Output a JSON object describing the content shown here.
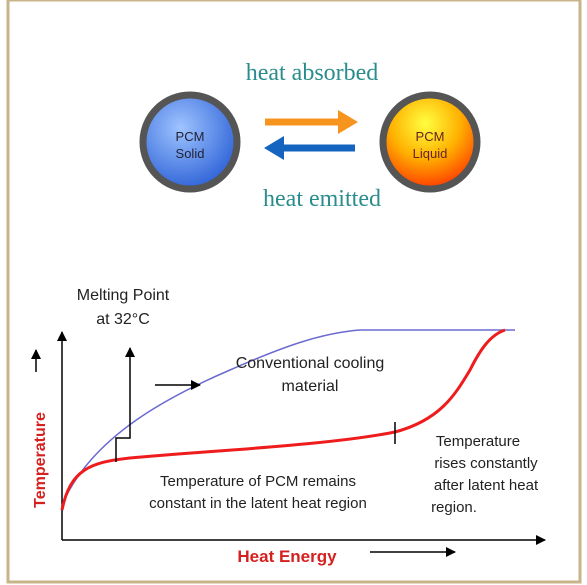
{
  "cycle": {
    "absorbed": "heat absorbed",
    "emitted": "heat emitted",
    "solid": [
      "PCM",
      "Solid"
    ],
    "liquid": [
      "PCM",
      "Liquid"
    ]
  },
  "graph": {
    "y_axis": "Temperature",
    "x_axis": "Heat Energy",
    "melting_point": [
      "Melting Point",
      "at 32°C"
    ],
    "conventional": [
      "Conventional cooling",
      "material"
    ],
    "latent": [
      "Temperature of PCM remains",
      "constant in the latent heat region"
    ],
    "after": [
      "Temperature",
      "rises constantly",
      "after latent heat",
      "region."
    ]
  }
}
